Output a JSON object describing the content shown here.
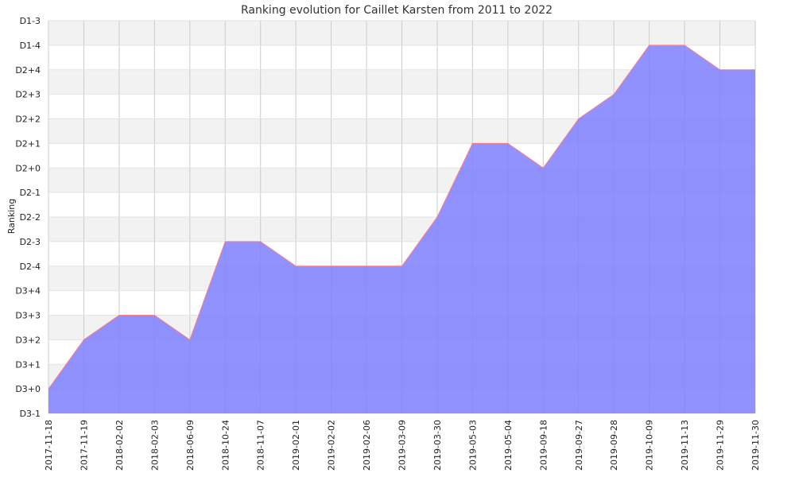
{
  "chart_data": {
    "type": "area",
    "title": "Ranking evolution for Caillet Karsten from 2011 to 2022",
    "xlabel": "",
    "ylabel": "Ranking",
    "y_categories": [
      "D3-1",
      "D3+0",
      "D3+1",
      "D3+2",
      "D3+3",
      "D3+4",
      "D2-4",
      "D2-3",
      "D2-2",
      "D2-1",
      "D2+0",
      "D2+1",
      "D2+2",
      "D2+3",
      "D2+4",
      "D1-4",
      "D1-3"
    ],
    "x": [
      "2017-11-18",
      "2017-11-19",
      "2018-02-02",
      "2018-02-03",
      "2018-06-09",
      "2018-10-24",
      "2018-11-07",
      "2019-02-01",
      "2019-02-02",
      "2019-02-06",
      "2019-03-09",
      "2019-03-30",
      "2019-05-03",
      "2019-05-04",
      "2019-09-18",
      "2019-09-27",
      "2019-09-28",
      "2019-10-09",
      "2019-11-13",
      "2019-11-29",
      "2019-11-30"
    ],
    "values": [
      "D3+0",
      "D3+2",
      "D3+3",
      "D3+3",
      "D3+2",
      "D2-3",
      "D2-3",
      "D2-4",
      "D2-4",
      "D2-4",
      "D2-4",
      "D2-2",
      "D2+1",
      "D2+1",
      "D2+0",
      "D2+2",
      "D2+3",
      "D1-4",
      "D1-4",
      "D2+4",
      "D2+4"
    ],
    "grid": true,
    "legend": "none",
    "fill_color": "#7f7fff",
    "line_color": "#ff7f7f",
    "band_color": "#f2f2f2",
    "grid_color": "#cccccc"
  }
}
